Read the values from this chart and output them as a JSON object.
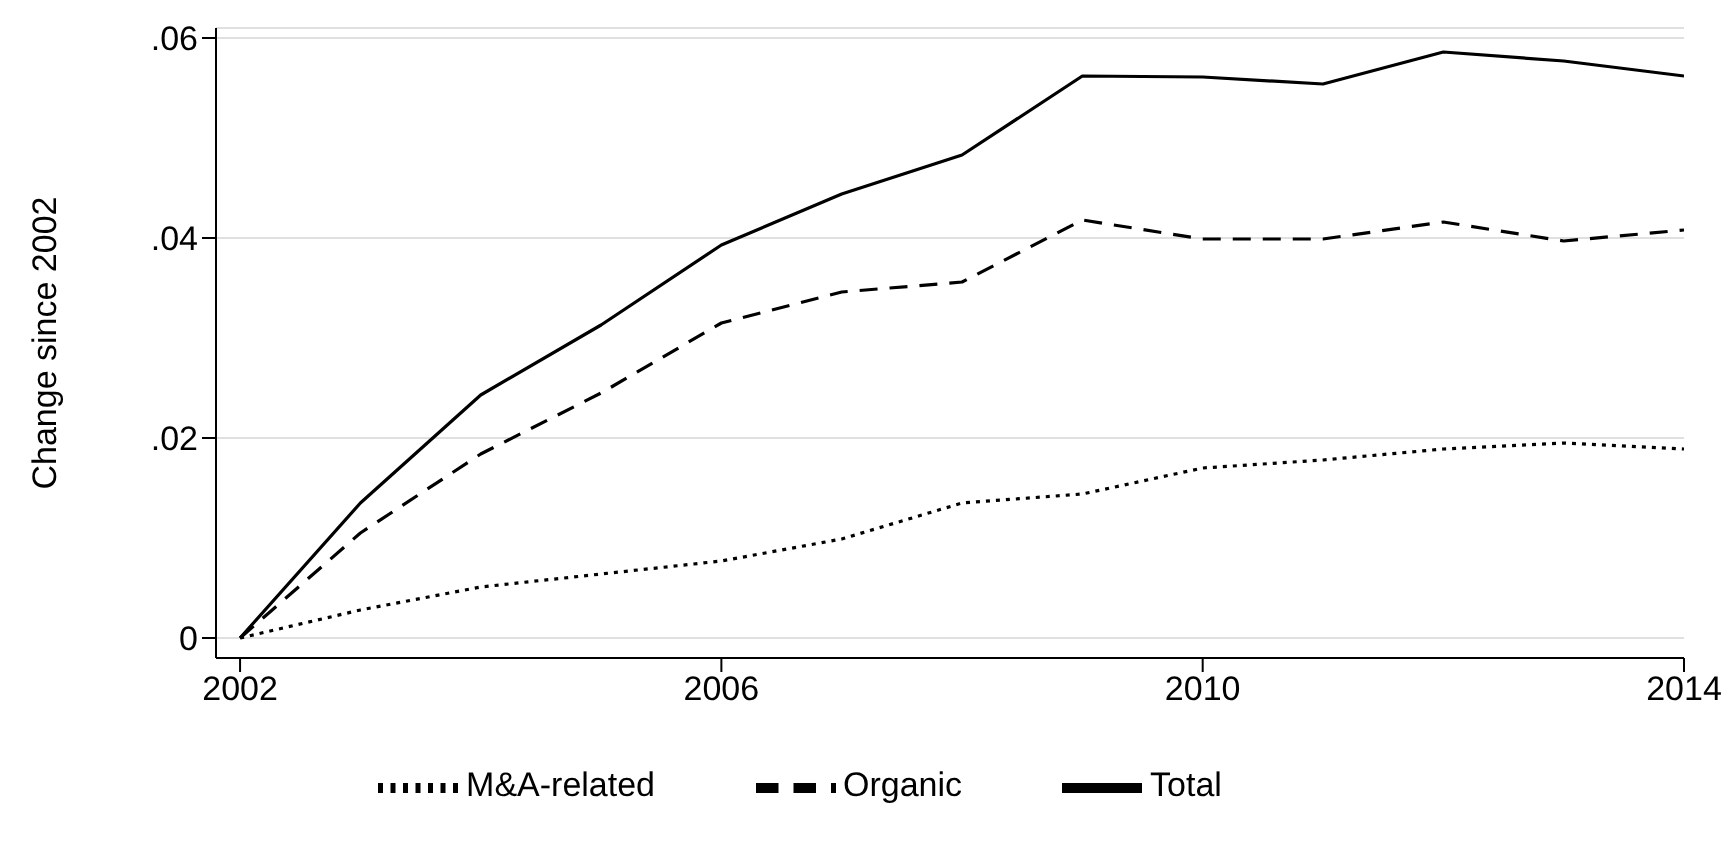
{
  "chart_data": {
    "type": "line",
    "ylabel": "Change since 2002",
    "x": [
      2002,
      2003,
      2004,
      2005,
      2006,
      2007,
      2008,
      2009,
      2010,
      2011,
      2012,
      2013,
      2014
    ],
    "series": [
      {
        "name": "Total",
        "color": "#000000",
        "line_style": "solid",
        "values": [
          0,
          0.0135,
          0.0243,
          0.0313,
          0.0393,
          0.0444,
          0.0483,
          0.0562,
          0.0561,
          0.0554,
          0.0586,
          0.0577,
          0.0562
        ]
      },
      {
        "name": "Organic",
        "color": "#000000",
        "line_style": "dashed",
        "values": [
          0,
          0.0105,
          0.0184,
          0.0245,
          0.0315,
          0.0346,
          0.0356,
          0.0418,
          0.0399,
          0.0399,
          0.0416,
          0.0397,
          0.0408
        ]
      },
      {
        "name": "M&A-related",
        "color": "#000000",
        "line_style": "dotted",
        "values": [
          0,
          0.0028,
          0.0051,
          0.0064,
          0.0077,
          0.0099,
          0.0135,
          0.0144,
          0.017,
          0.0178,
          0.0189,
          0.0195,
          0.0189
        ]
      }
    ],
    "xlim": [
      2001.8,
      2014
    ],
    "xticks": [
      2002,
      2006,
      2010,
      2014
    ],
    "ylim": [
      -0.002,
      0.061
    ],
    "yticks": [
      {
        "value": 0,
        "label": "0"
      },
      {
        "value": 0.02,
        "label": ".02"
      },
      {
        "value": 0.04,
        "label": ".04"
      },
      {
        "value": 0.06,
        "label": ".06"
      }
    ],
    "grid": "y",
    "legend": "bottom",
    "marker": "none"
  }
}
